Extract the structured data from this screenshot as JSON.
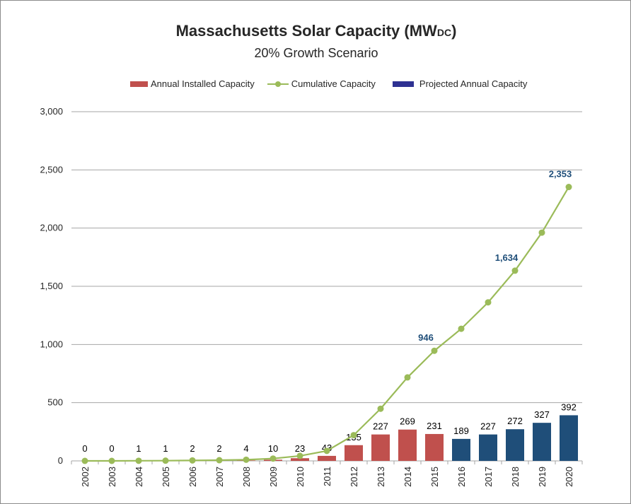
{
  "chart_data": {
    "type": "bar+line",
    "title": "Massachusetts Solar Capacity (MW",
    "title_subscript": "DC",
    "title_close": ")",
    "subtitle": "20% Growth Scenario",
    "categories": [
      "2002",
      "2003",
      "2004",
      "2005",
      "2006",
      "2007",
      "2008",
      "2009",
      "2010",
      "2011",
      "2012",
      "2013",
      "2014",
      "2015",
      "2016",
      "2017",
      "2018",
      "2019",
      "2020"
    ],
    "series": [
      {
        "name": "Annual Installed Capacity",
        "type": "bar",
        "color": "#c0504d",
        "values": [
          0,
          0,
          1,
          1,
          2,
          2,
          4,
          10,
          23,
          43,
          135,
          227,
          269,
          231,
          null,
          null,
          null,
          null,
          null
        ]
      },
      {
        "name": "Cumulative Capacity",
        "type": "line",
        "color": "#9bbb59",
        "values": [
          0,
          0,
          1,
          2,
          4,
          6,
          10,
          20,
          43,
          86,
          221,
          448,
          717,
          946,
          1135,
          1362,
          1634,
          1961,
          2353
        ]
      },
      {
        "name": "Projected Annual Capacity",
        "type": "bar",
        "color": "#1f4e79",
        "legend_color": "#2e3192",
        "values": [
          null,
          null,
          null,
          null,
          null,
          null,
          null,
          null,
          null,
          null,
          null,
          null,
          null,
          null,
          189,
          227,
          272,
          327,
          392
        ]
      }
    ],
    "cumulative_labels": [
      {
        "year": "2015",
        "label": "946"
      },
      {
        "year": "2018",
        "label": "1,634"
      },
      {
        "year": "2020",
        "label": "2,353"
      }
    ],
    "cumulative_label_color": "#1f4e79",
    "ylim": [
      0,
      3000
    ],
    "yticks": [
      0,
      500,
      1000,
      1500,
      2000,
      2500,
      3000
    ],
    "ytick_labels": [
      "0",
      "500",
      "1,000",
      "1,500",
      "2,000",
      "2,500",
      "3,000"
    ],
    "grid": true,
    "legend_position": "top"
  }
}
